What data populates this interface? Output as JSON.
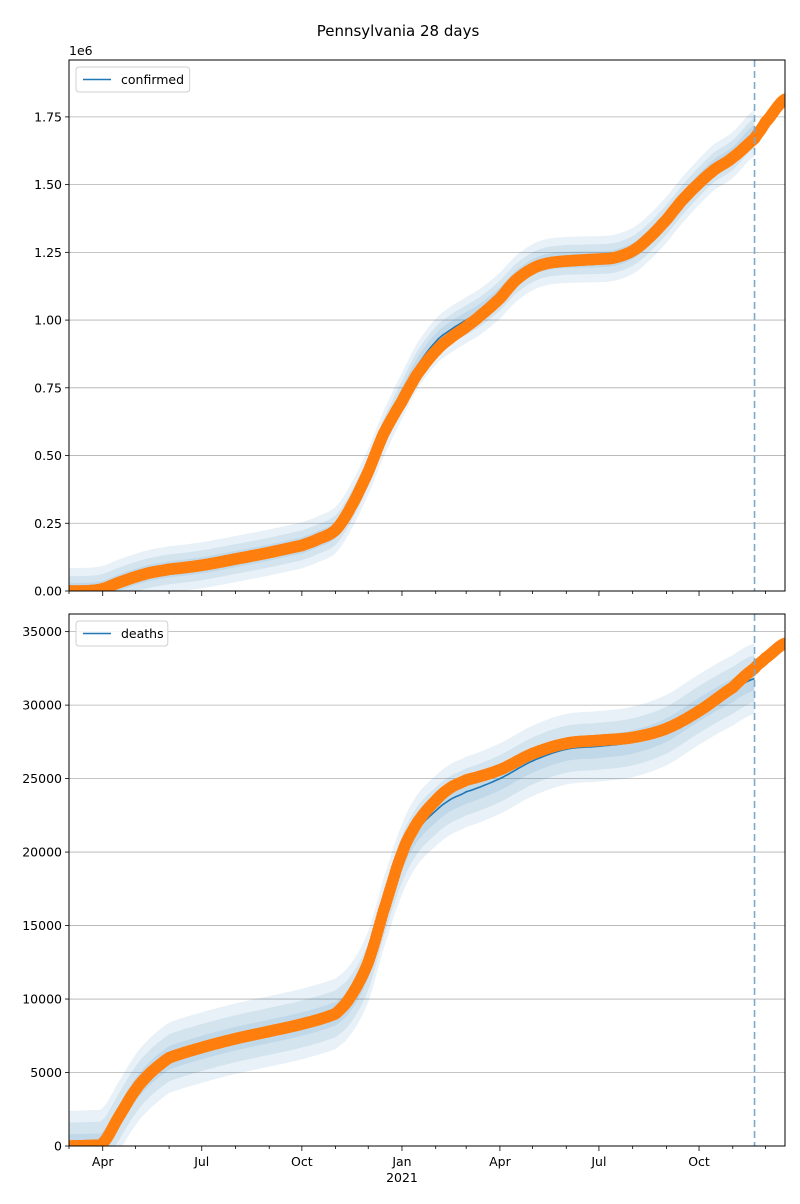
{
  "figure": {
    "title": "Pennsylvania 28 days"
  },
  "colors": {
    "model_line": "#1f77b4",
    "band": "#1f77b4",
    "observed": "#ff7f0e",
    "vline": "#7fa9c9",
    "grid": "#b0b0b0"
  },
  "chart_data": [
    {
      "type": "line",
      "title": "",
      "xlabel": "",
      "ylabel": "",
      "y_offset_label": "1e6",
      "show_x_tick_labels": false,
      "x_range": [
        "2020-03-01",
        "2021-12-19"
      ],
      "ylim": [
        0,
        1.96
      ],
      "yticks": [
        0,
        0.25,
        0.5,
        0.75,
        1.0,
        1.25,
        1.5,
        1.75
      ],
      "ytick_labels": [
        "0.00",
        "0.25",
        "0.50",
        "0.75",
        "1.00",
        "1.25",
        "1.50",
        "1.75"
      ],
      "grid": true,
      "legend": {
        "position": "top-left",
        "entries": [
          "confirmed"
        ]
      },
      "forecast_date": "2021-11-21",
      "series": [
        {
          "name": "confirmed",
          "style": "line",
          "x": [
            "2020-03-01",
            "2020-03-20",
            "2020-04-01",
            "2020-04-15",
            "2020-05-01",
            "2020-05-15",
            "2020-06-01",
            "2020-07-01",
            "2020-08-01",
            "2020-09-01",
            "2020-10-01",
            "2020-10-15",
            "2020-11-01",
            "2020-11-15",
            "2020-12-01",
            "2020-12-15",
            "2021-01-01",
            "2021-01-15",
            "2021-02-01",
            "2021-02-15",
            "2021-03-01",
            "2021-03-15",
            "2021-04-01",
            "2021-04-15",
            "2021-05-01",
            "2021-05-15",
            "2021-06-01",
            "2021-07-01",
            "2021-07-15",
            "2021-08-01",
            "2021-08-15",
            "2021-09-01",
            "2021-09-15",
            "2021-10-01",
            "2021-10-15",
            "2021-11-01",
            "2021-11-21"
          ],
          "y": [
            0,
            0.001,
            0.008,
            0.03,
            0.052,
            0.068,
            0.08,
            0.095,
            0.118,
            0.142,
            0.168,
            0.19,
            0.225,
            0.31,
            0.44,
            0.58,
            0.72,
            0.83,
            0.92,
            0.965,
            1.0,
            1.035,
            1.09,
            1.15,
            1.195,
            1.215,
            1.222,
            1.225,
            1.23,
            1.255,
            1.3,
            1.37,
            1.44,
            1.51,
            1.565,
            1.61,
            1.69
          ],
          "bands": [
            0.03,
            0.055,
            0.085
          ]
        },
        {
          "name": "confirmed observed",
          "style": "markers",
          "x": [
            "2020-03-01",
            "2020-03-20",
            "2020-04-01",
            "2020-04-15",
            "2020-05-01",
            "2020-05-15",
            "2020-06-01",
            "2020-07-01",
            "2020-08-01",
            "2020-09-01",
            "2020-10-01",
            "2020-10-15",
            "2020-11-01",
            "2020-11-15",
            "2020-12-01",
            "2020-12-15",
            "2021-01-01",
            "2021-01-15",
            "2021-02-01",
            "2021-02-15",
            "2021-03-01",
            "2021-03-15",
            "2021-04-01",
            "2021-04-15",
            "2021-05-01",
            "2021-05-15",
            "2021-06-01",
            "2021-07-01",
            "2021-07-15",
            "2021-08-01",
            "2021-08-15",
            "2021-09-01",
            "2021-09-15",
            "2021-10-01",
            "2021-10-15",
            "2021-11-01",
            "2021-11-21",
            "2021-12-01",
            "2021-12-19"
          ],
          "y": [
            0,
            0.001,
            0.008,
            0.03,
            0.052,
            0.068,
            0.08,
            0.095,
            0.118,
            0.142,
            0.168,
            0.19,
            0.225,
            0.31,
            0.44,
            0.58,
            0.7,
            0.8,
            0.885,
            0.935,
            0.975,
            1.02,
            1.08,
            1.145,
            1.19,
            1.21,
            1.218,
            1.225,
            1.23,
            1.255,
            1.3,
            1.37,
            1.44,
            1.505,
            1.555,
            1.6,
            1.67,
            1.73,
            1.815
          ]
        }
      ]
    },
    {
      "type": "line",
      "title": "",
      "xlabel": "",
      "ylabel": "",
      "show_x_tick_labels": true,
      "x_range": [
        "2020-03-01",
        "2021-12-19"
      ],
      "xticks": [
        "2020-04-01",
        "2020-07-01",
        "2020-10-01",
        "2021-01-01",
        "2021-04-01",
        "2021-07-01",
        "2021-10-01"
      ],
      "xtick_labels": [
        "Apr",
        "Jul",
        "Oct",
        "Jan",
        "Apr",
        "Jul",
        "Oct"
      ],
      "x_year_label": "2021",
      "ylim": [
        0,
        36200
      ],
      "yticks": [
        0,
        5000,
        10000,
        15000,
        20000,
        25000,
        30000,
        35000
      ],
      "ytick_labels": [
        "0",
        "5000",
        "10000",
        "15000",
        "20000",
        "25000",
        "30000",
        "35000"
      ],
      "grid": true,
      "legend": {
        "position": "top-left",
        "entries": [
          "deaths"
        ]
      },
      "forecast_date": "2021-11-21",
      "series": [
        {
          "name": "deaths",
          "style": "line",
          "x": [
            "2020-03-01",
            "2020-03-25",
            "2020-04-01",
            "2020-04-15",
            "2020-05-01",
            "2020-05-15",
            "2020-06-01",
            "2020-07-01",
            "2020-08-01",
            "2020-09-01",
            "2020-10-01",
            "2020-11-01",
            "2020-11-15",
            "2020-12-01",
            "2020-12-15",
            "2021-01-01",
            "2021-01-15",
            "2021-02-01",
            "2021-02-15",
            "2021-03-01",
            "2021-04-01",
            "2021-05-01",
            "2021-06-01",
            "2021-07-01",
            "2021-08-01",
            "2021-09-01",
            "2021-10-01",
            "2021-11-01",
            "2021-11-21"
          ],
          "y": [
            0,
            50,
            200,
            1900,
            3800,
            5000,
            6000,
            6700,
            7300,
            7800,
            8300,
            9000,
            10000,
            12200,
            15800,
            19500,
            21500,
            22800,
            23600,
            24100,
            25000,
            26200,
            27000,
            27200,
            27500,
            28300,
            29700,
            31000,
            31800
          ],
          "bands": [
            800,
            1600,
            2400
          ]
        },
        {
          "name": "deaths observed",
          "style": "markers",
          "x": [
            "2020-03-01",
            "2020-03-25",
            "2020-04-01",
            "2020-04-15",
            "2020-05-01",
            "2020-05-15",
            "2020-06-01",
            "2020-07-01",
            "2020-08-01",
            "2020-09-01",
            "2020-10-01",
            "2020-11-01",
            "2020-11-15",
            "2020-12-01",
            "2020-12-15",
            "2021-01-01",
            "2021-01-15",
            "2021-02-01",
            "2021-02-15",
            "2021-03-01",
            "2021-04-01",
            "2021-05-01",
            "2021-06-01",
            "2021-07-01",
            "2021-08-01",
            "2021-09-01",
            "2021-10-01",
            "2021-11-01",
            "2021-11-21",
            "2021-12-01",
            "2021-12-19"
          ],
          "y": [
            0,
            50,
            200,
            1900,
            3800,
            5000,
            6000,
            6700,
            7300,
            7800,
            8300,
            9000,
            10200,
            12500,
            16000,
            19900,
            22000,
            23500,
            24400,
            24900,
            25600,
            26700,
            27400,
            27600,
            27800,
            28400,
            29600,
            31200,
            32500,
            33200,
            34200
          ]
        }
      ]
    }
  ]
}
